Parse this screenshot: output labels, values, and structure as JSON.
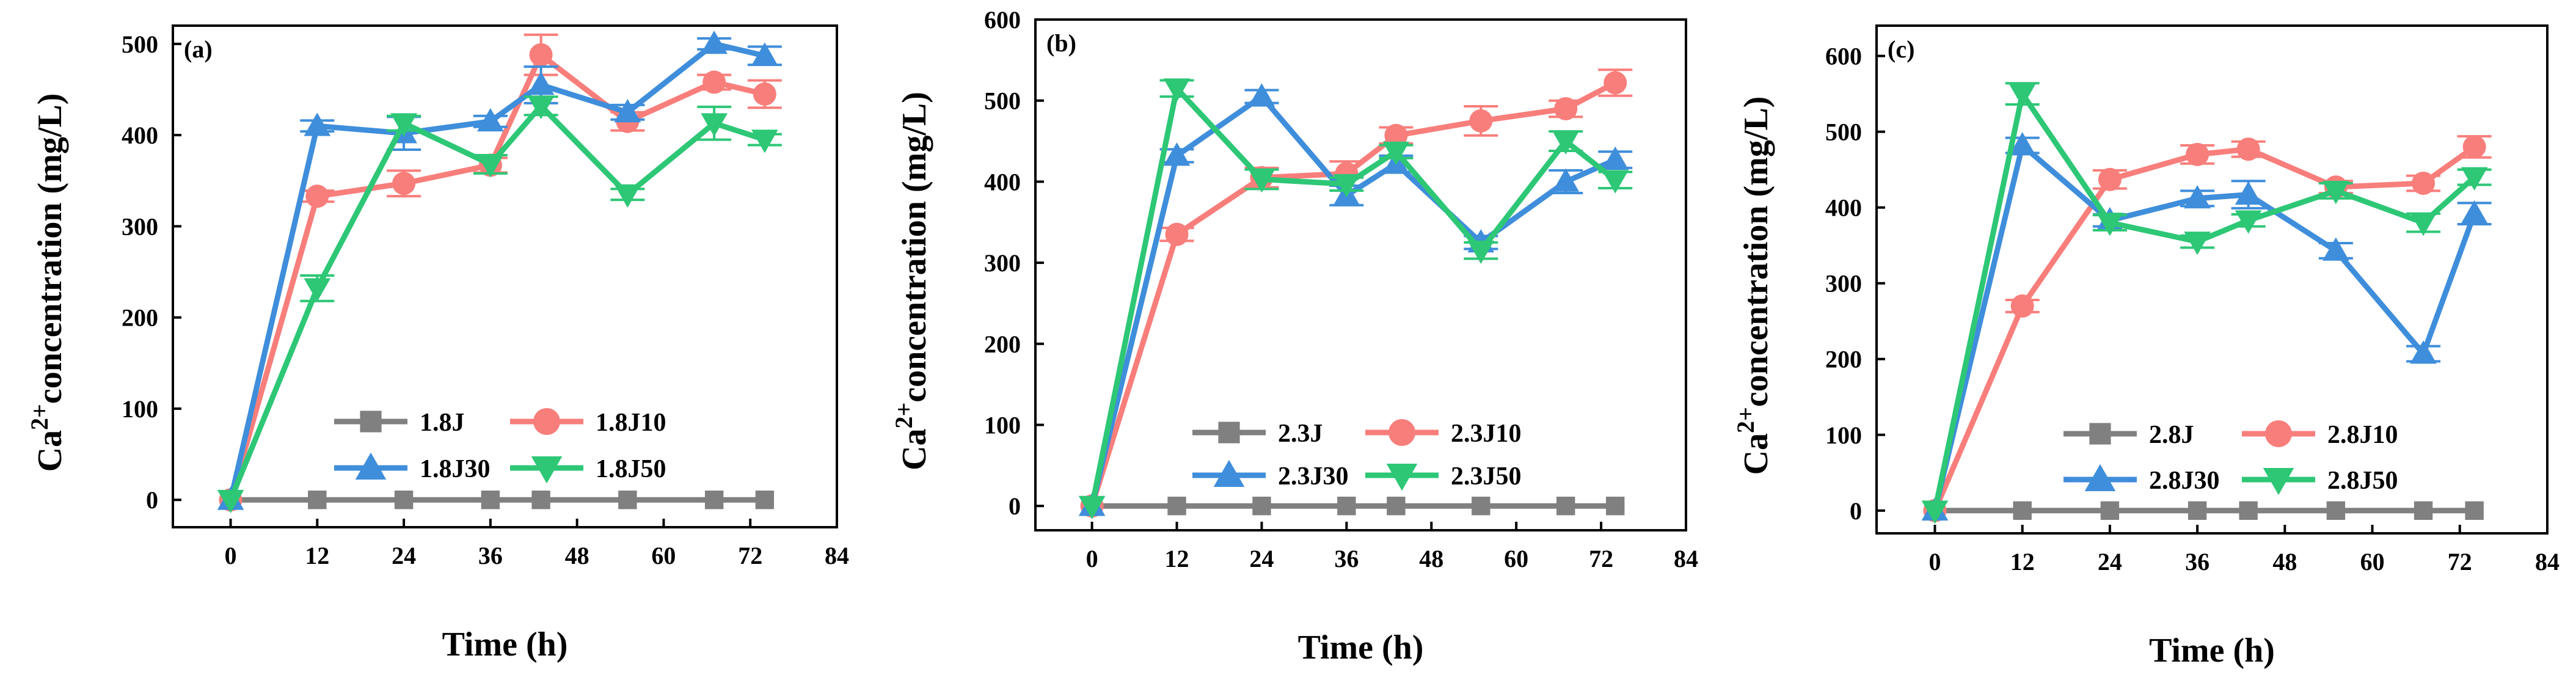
{
  "figure": {
    "title": ""
  },
  "chart_data": [
    {
      "type": "line",
      "panel_label": "(a)",
      "xlabel": "Time (h)",
      "ylabel": "Ca2+concentration (mg/L)",
      "xlim": [
        -8,
        84
      ],
      "ylim": [
        -30,
        520
      ],
      "x_ticks": [
        "0",
        "12",
        "24",
        "36",
        "48",
        "60",
        "72",
        "84"
      ],
      "y_ticks": [
        "0",
        "100",
        "200",
        "300",
        "400",
        "500"
      ],
      "x": [
        0,
        12,
        24,
        36,
        43,
        55,
        67,
        74
      ],
      "series": [
        {
          "name": "1.8J",
          "color": "#808080",
          "marker": "square",
          "values": [
            0,
            0,
            0,
            0,
            0,
            0,
            0,
            0
          ]
        },
        {
          "name": "1.8J10",
          "color": "#F87E7B",
          "marker": "circle",
          "values": [
            0,
            333,
            347,
            367,
            488,
            415,
            458,
            445
          ]
        },
        {
          "name": "1.8J30",
          "color": "#3F8EDB",
          "marker": "triangle-up",
          "values": [
            0,
            410,
            402,
            415,
            455,
            425,
            500,
            487
          ]
        },
        {
          "name": "1.8J50",
          "color": "#2DC776",
          "marker": "triangle-down",
          "values": [
            0,
            232,
            413,
            368,
            432,
            335,
            413,
            395
          ]
        }
      ],
      "errors": [
        [
          0,
          0,
          0,
          0,
          0,
          0,
          0,
          0
        ],
        [
          0,
          6,
          14,
          8,
          22,
          10,
          8,
          15
        ],
        [
          0,
          6,
          18,
          6,
          20,
          8,
          6,
          10
        ],
        [
          0,
          14,
          8,
          10,
          10,
          6,
          18,
          6
        ]
      ],
      "legend_position": "lower-right"
    },
    {
      "type": "line",
      "panel_label": "(b)",
      "xlabel": "Time (h)",
      "ylabel": "Ca2+concentration (mg/L)",
      "xlim": [
        -8,
        84
      ],
      "ylim": [
        -30,
        600
      ],
      "x_ticks": [
        "0",
        "12",
        "24",
        "36",
        "48",
        "60",
        "72",
        "84"
      ],
      "y_ticks": [
        "0",
        "100",
        "200",
        "300",
        "400",
        "500",
        "600"
      ],
      "x": [
        0,
        12,
        24,
        36,
        43,
        55,
        67,
        74
      ],
      "series": [
        {
          "name": "2.3J",
          "color": "#808080",
          "marker": "square",
          "values": [
            0,
            0,
            0,
            0,
            0,
            0,
            0,
            0
          ]
        },
        {
          "name": "2.3J10",
          "color": "#F87E7B",
          "marker": "circle",
          "values": [
            0,
            335,
            405,
            410,
            457,
            475,
            490,
            522
          ]
        },
        {
          "name": "2.3J30",
          "color": "#3F8EDB",
          "marker": "triangle-up",
          "values": [
            0,
            432,
            505,
            383,
            422,
            325,
            400,
            427
          ]
        },
        {
          "name": "2.3J50",
          "color": "#2DC776",
          "marker": "triangle-down",
          "values": [
            0,
            515,
            403,
            397,
            437,
            315,
            450,
            402
          ]
        }
      ],
      "errors": [
        [
          0,
          0,
          0,
          0,
          0,
          0,
          0,
          0
        ],
        [
          0,
          8,
          12,
          15,
          10,
          18,
          10,
          16
        ],
        [
          0,
          8,
          8,
          12,
          10,
          8,
          14,
          10
        ],
        [
          0,
          10,
          12,
          8,
          8,
          10,
          12,
          10
        ]
      ],
      "legend_position": "lower-right"
    },
    {
      "type": "line",
      "panel_label": "(c)",
      "xlabel": "Time (h)",
      "ylabel": "Ca2+concentration (mg/L)",
      "xlim": [
        -8,
        84
      ],
      "ylim": [
        -30,
        640
      ],
      "x_ticks": [
        "0",
        "12",
        "24",
        "36",
        "48",
        "60",
        "72",
        "84"
      ],
      "y_ticks": [
        "0",
        "100",
        "200",
        "300",
        "400",
        "500",
        "600"
      ],
      "x": [
        0,
        12,
        24,
        36,
        43,
        55,
        67,
        74
      ],
      "series": [
        {
          "name": "2.8J",
          "color": "#808080",
          "marker": "square",
          "values": [
            0,
            0,
            0,
            0,
            0,
            0,
            0,
            0
          ]
        },
        {
          "name": "2.8J10",
          "color": "#F87E7B",
          "marker": "circle",
          "values": [
            0,
            270,
            437,
            470,
            477,
            427,
            432,
            480
          ]
        },
        {
          "name": "2.8J30",
          "color": "#3F8EDB",
          "marker": "triangle-up",
          "values": [
            0,
            482,
            383,
            412,
            417,
            343,
            207,
            392
          ]
        },
        {
          "name": "2.8J50",
          "color": "#2DC776",
          "marker": "triangle-down",
          "values": [
            0,
            550,
            380,
            355,
            383,
            422,
            380,
            440
          ]
        }
      ],
      "errors": [
        [
          0,
          0,
          0,
          0,
          0,
          0,
          0,
          0
        ],
        [
          0,
          8,
          12,
          12,
          10,
          8,
          10,
          14
        ],
        [
          0,
          10,
          8,
          10,
          18,
          10,
          10,
          14
        ],
        [
          0,
          14,
          10,
          8,
          8,
          10,
          12,
          10
        ]
      ],
      "legend_position": "lower-right"
    }
  ]
}
